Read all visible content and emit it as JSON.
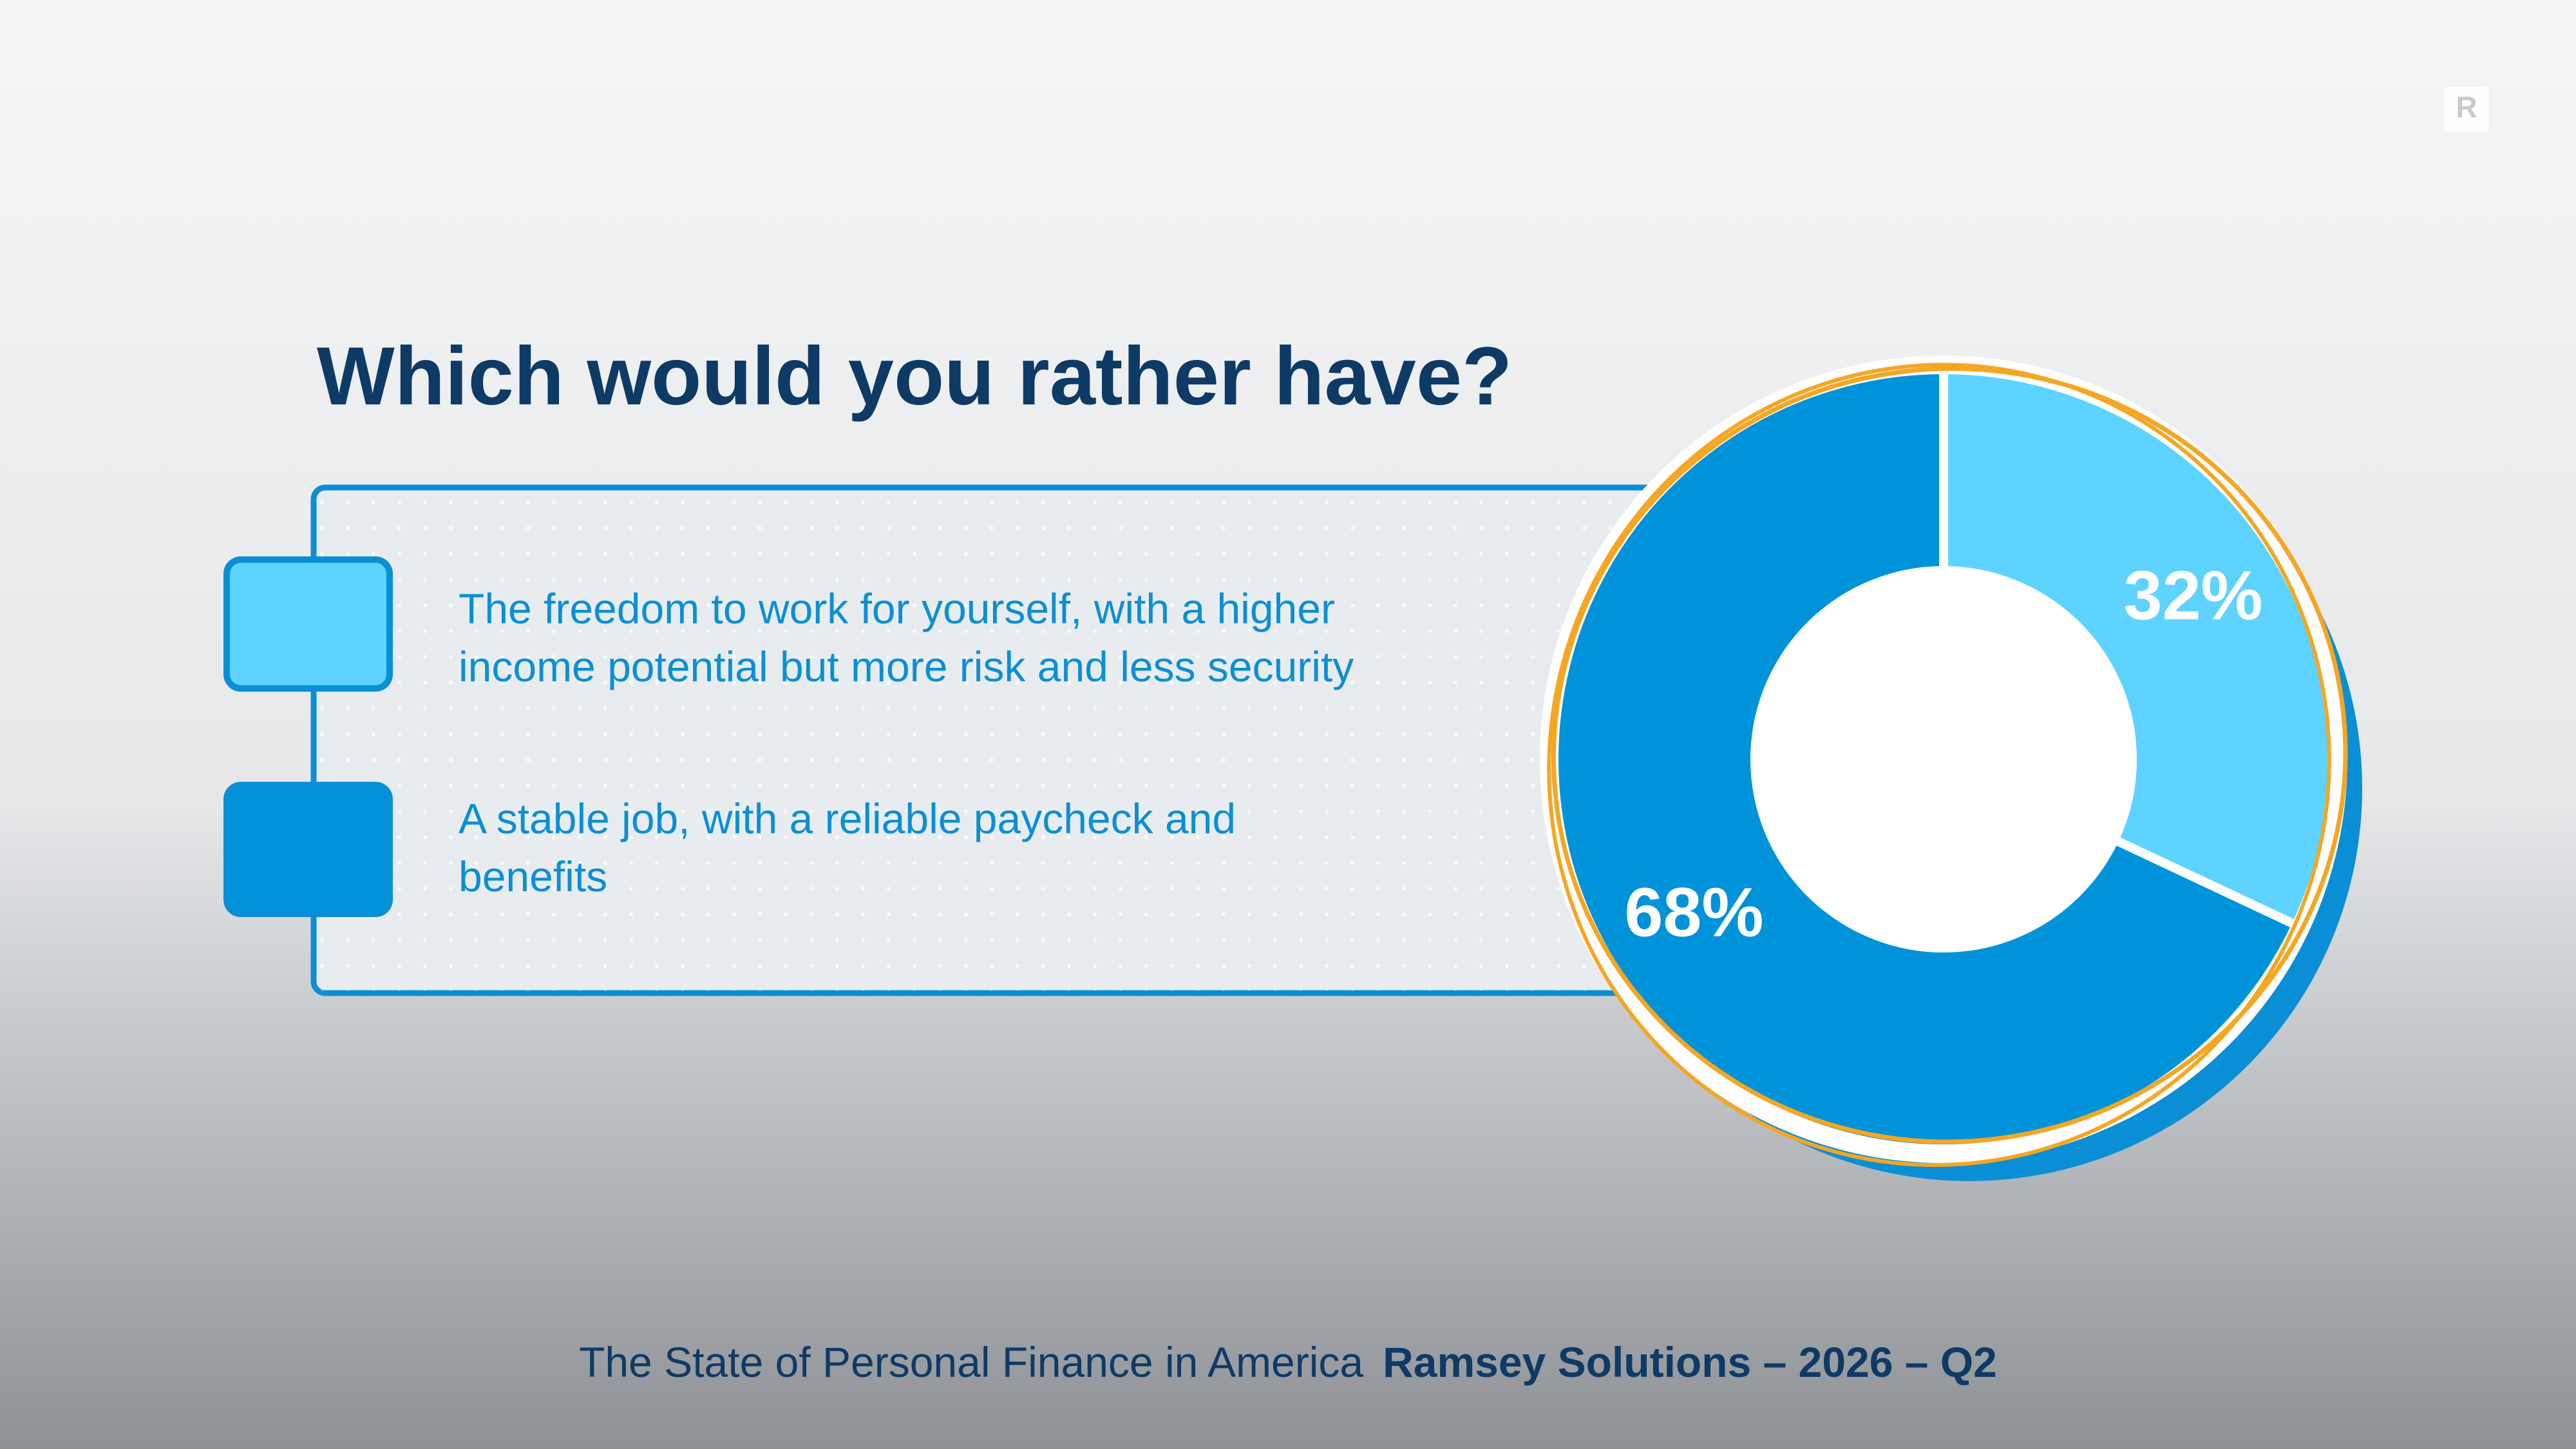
{
  "chart_data": {
    "type": "pie",
    "title": "Which would you rather have?",
    "categories": [
      "The freedom to work for yourself, with a higher income potential but more risk and less security",
      "A stable job, with a reliable paycheck and benefits"
    ],
    "values": [
      32,
      68
    ],
    "value_labels": [
      "32%",
      "68%"
    ],
    "colors": [
      "#5fd3ff",
      "#0093d9"
    ],
    "donut": true
  },
  "footer": {
    "source": "The State of Personal Finance in America",
    "publisher": "Ramsey Solutions – 2026 – Q2"
  },
  "logo": "R"
}
